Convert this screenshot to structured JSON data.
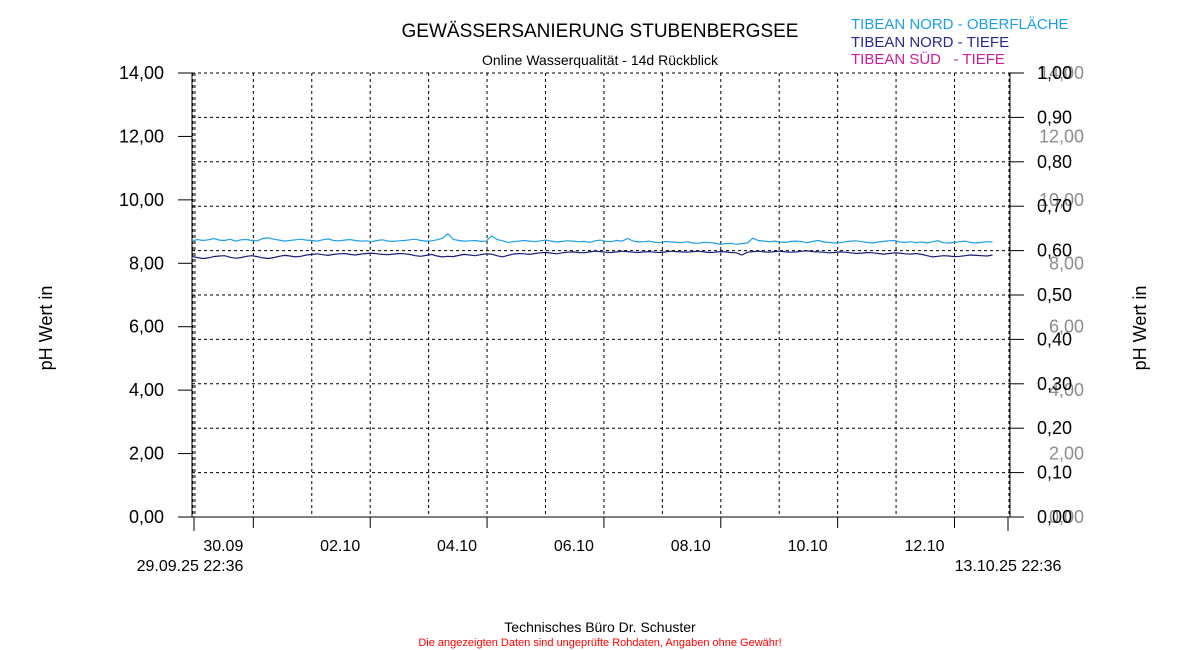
{
  "chart_data": {
    "type": "line",
    "title": "GEWÄSSERSANIERUNG STUBENBERGSEE",
    "subtitle": "Online Wasserqualität - 14d Rückblick",
    "ylabel_left": "pH Wert in",
    "ylabel_right": "pH Wert in",
    "ylim": [
      0,
      14
    ],
    "y_ticks": [
      "0,00",
      "2,00",
      "4,00",
      "6,00",
      "8,00",
      "10,00",
      "12,00",
      "14,00"
    ],
    "y2lim": [
      0,
      1
    ],
    "y2_ticks": [
      "0,00",
      "0,10",
      "0,20",
      "0,30",
      "0,40",
      "0,50",
      "0,60",
      "0,70",
      "0,80",
      "0,90",
      "1,00"
    ],
    "y3_ticks": [
      "0,00",
      "2,00",
      "4,00",
      "6,00",
      "8,00",
      "10,00",
      "12,00",
      "14,00"
    ],
    "x_start_label": "29.09.25 22:36",
    "x_end_label": "13.10.25 22:36",
    "x_range_days": [
      0,
      14
    ],
    "x_ticks": [
      {
        "label": "30.09",
        "day": 1.05
      },
      {
        "label": "02.10",
        "day": 3.05
      },
      {
        "label": "04.10",
        "day": 5.05
      },
      {
        "label": "06.10",
        "day": 7.05
      },
      {
        "label": "08.10",
        "day": 9.05
      },
      {
        "label": "10.10",
        "day": 11.05
      },
      {
        "label": "12.10",
        "day": 13.05
      }
    ],
    "grid": true,
    "series": [
      {
        "name": "TIBEAN NORD - OBERFLÄCHE",
        "color": "#1ea0e6",
        "values": [
          8.7,
          8.75,
          8.72,
          8.74,
          8.78,
          8.73,
          8.72,
          8.76,
          8.7,
          8.74,
          8.75,
          8.72,
          8.71,
          8.78,
          8.8,
          8.76,
          8.73,
          8.7,
          8.72,
          8.74,
          8.76,
          8.73,
          8.72,
          8.7,
          8.74,
          8.77,
          8.72,
          8.71,
          8.73,
          8.75,
          8.72,
          8.7,
          8.71,
          8.68,
          8.72,
          8.74,
          8.7,
          8.69,
          8.71,
          8.72,
          8.74,
          8.76,
          8.72,
          8.7,
          8.71,
          8.74,
          8.79,
          8.93,
          8.75,
          8.72,
          8.7,
          8.71,
          8.72,
          8.69,
          8.7,
          8.86,
          8.75,
          8.71,
          8.66,
          8.68,
          8.7,
          8.72,
          8.7,
          8.68,
          8.71,
          8.73,
          8.7,
          8.67,
          8.69,
          8.71,
          8.7,
          8.68,
          8.69,
          8.66,
          8.71,
          8.73,
          8.69,
          8.68,
          8.72,
          8.7,
          8.78,
          8.7,
          8.67,
          8.68,
          8.7,
          8.66,
          8.65,
          8.69,
          8.67,
          8.66,
          8.65,
          8.68,
          8.64,
          8.63,
          8.66,
          8.65,
          8.64,
          8.6,
          8.62,
          8.63,
          8.6,
          8.62,
          8.64,
          8.79,
          8.72,
          8.7,
          8.68,
          8.7,
          8.67,
          8.66,
          8.69,
          8.7,
          8.68,
          8.65,
          8.69,
          8.72,
          8.67,
          8.66,
          8.64,
          8.65,
          8.68,
          8.7,
          8.71,
          8.68,
          8.66,
          8.64,
          8.67,
          8.69,
          8.71,
          8.72,
          8.67,
          8.66,
          8.68,
          8.65,
          8.67,
          8.64,
          8.68,
          8.71,
          8.65,
          8.64,
          8.66,
          8.68,
          8.7,
          8.66,
          8.64,
          8.66,
          8.68,
          8.67
        ]
      },
      {
        "name": "TIBEAN NORD - TIEFE",
        "color": "#1a1a7a",
        "values": [
          8.22,
          8.18,
          8.15,
          8.17,
          8.21,
          8.23,
          8.24,
          8.19,
          8.16,
          8.18,
          8.22,
          8.24,
          8.21,
          8.17,
          8.15,
          8.18,
          8.22,
          8.25,
          8.23,
          8.2,
          8.22,
          8.26,
          8.28,
          8.3,
          8.27,
          8.25,
          8.28,
          8.3,
          8.31,
          8.28,
          8.26,
          8.29,
          8.31,
          8.32,
          8.3,
          8.28,
          8.27,
          8.29,
          8.31,
          8.3,
          8.28,
          8.24,
          8.22,
          8.25,
          8.28,
          8.23,
          8.2,
          8.22,
          8.21,
          8.25,
          8.28,
          8.26,
          8.24,
          8.27,
          8.3,
          8.29,
          8.24,
          8.2,
          8.25,
          8.29,
          8.31,
          8.3,
          8.28,
          8.31,
          8.33,
          8.34,
          8.32,
          8.3,
          8.33,
          8.35,
          8.36,
          8.34,
          8.33,
          8.36,
          8.38,
          8.37,
          8.35,
          8.34,
          8.36,
          8.38,
          8.37,
          8.35,
          8.34,
          8.36,
          8.37,
          8.35,
          8.34,
          8.36,
          8.38,
          8.37,
          8.36,
          8.35,
          8.37,
          8.38,
          8.36,
          8.34,
          8.35,
          8.37,
          8.36,
          8.34,
          8.33,
          8.26,
          8.35,
          8.37,
          8.38,
          8.36,
          8.35,
          8.37,
          8.38,
          8.36,
          8.35,
          8.36,
          8.38,
          8.39,
          8.37,
          8.36,
          8.35,
          8.33,
          8.34,
          8.36,
          8.35,
          8.33,
          8.31,
          8.32,
          8.34,
          8.33,
          8.31,
          8.29,
          8.31,
          8.33,
          8.32,
          8.3,
          8.29,
          8.31,
          8.28,
          8.24,
          8.2,
          8.22,
          8.24,
          8.23,
          8.21,
          8.22,
          8.24,
          8.26,
          8.25,
          8.24,
          8.23,
          8.26
        ]
      },
      {
        "name": "TIBEAN SÜD   - TIEFE",
        "color": "#cc1e99",
        "values": []
      }
    ]
  },
  "footer": {
    "company": "Technisches Büro Dr. Schuster",
    "disclaimer": "Die angezeigten Daten sind ungeprüfte Rohdaten, Angaben ohne Gewähr!"
  }
}
